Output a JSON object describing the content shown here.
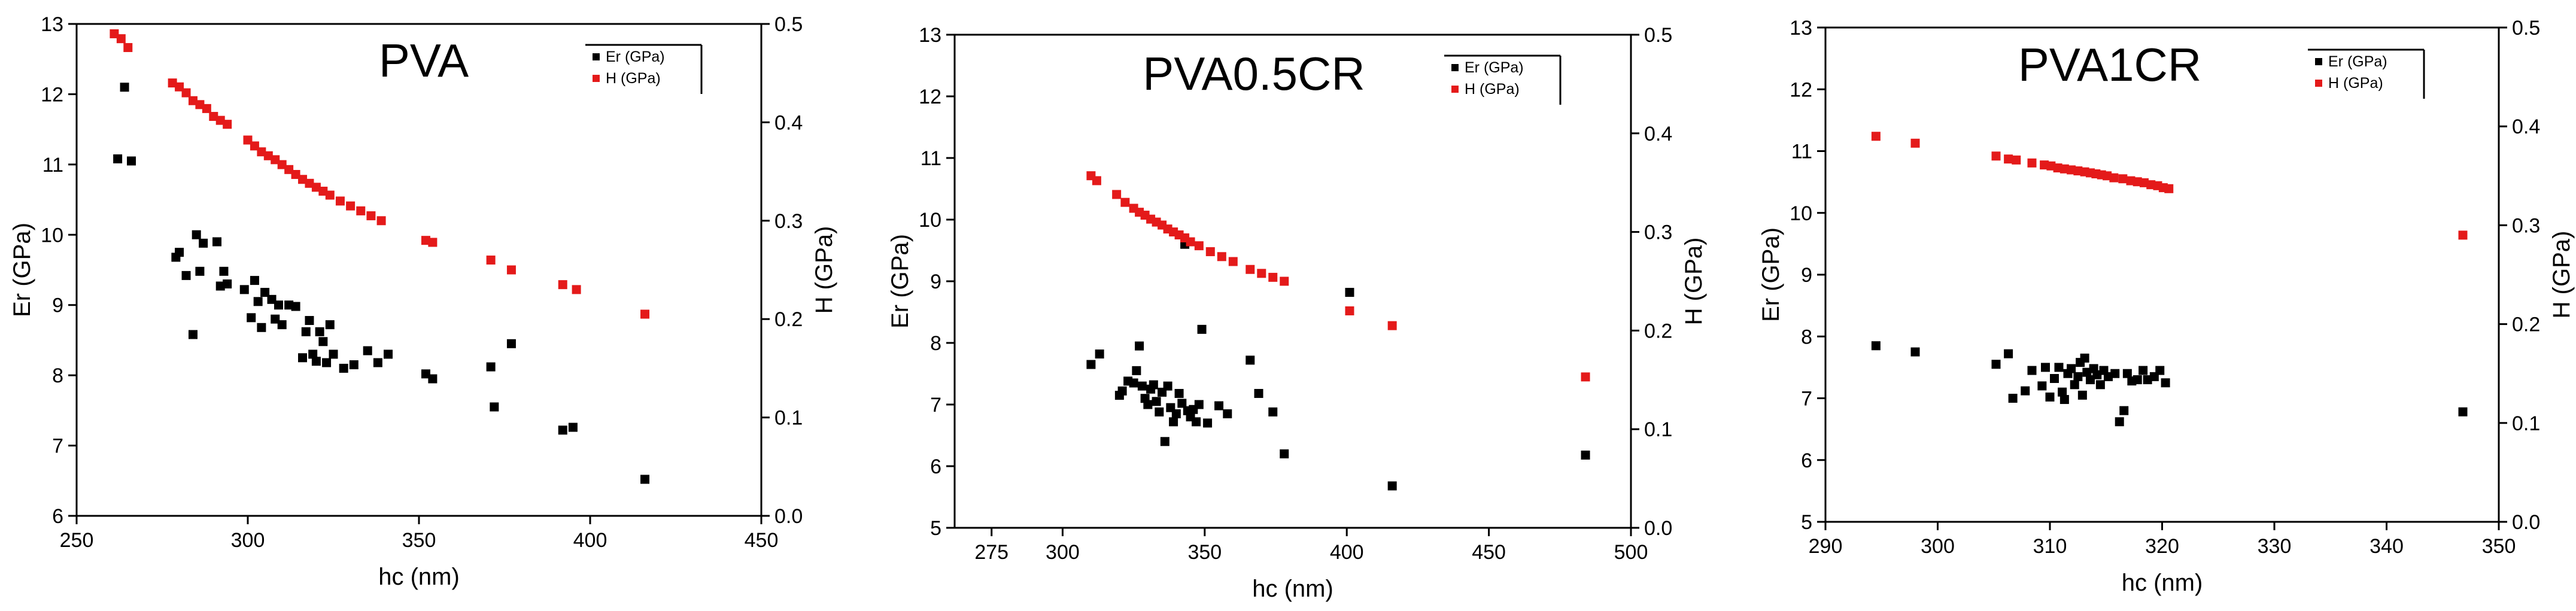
{
  "chart_data": [
    {
      "type": "scatter",
      "title": "PVA",
      "xlabel": "hc (nm)",
      "ylabel": "Er (GPa)",
      "y2label": "H (GPa)",
      "xlim": [
        250,
        450
      ],
      "ylim": [
        6,
        13
      ],
      "y2lim": [
        0.0,
        0.5
      ],
      "xticks": [
        "250",
        "300",
        "350",
        "400",
        "450"
      ],
      "yticks": [
        "6",
        "7",
        "8",
        "9",
        "10",
        "11",
        "12",
        "13"
      ],
      "y2ticks": [
        "0.0",
        "0.1",
        "0.2",
        "0.3",
        "0.4",
        "0.5"
      ],
      "legend": [
        "Er (GPa)",
        "H (GPa)"
      ],
      "legend_position": "top-right",
      "series": [
        {
          "name": "Er (GPa)",
          "axis": "left",
          "color": "#000000",
          "points": [
            [
              262,
              11.08
            ],
            [
              264,
              12.1
            ],
            [
              266,
              11.05
            ],
            [
              279,
              9.68
            ],
            [
              280,
              9.75
            ],
            [
              282,
              9.42
            ],
            [
              284,
              8.58
            ],
            [
              285,
              10.0
            ],
            [
              286,
              9.48
            ],
            [
              287,
              9.88
            ],
            [
              291,
              9.9
            ],
            [
              292,
              9.27
            ],
            [
              293,
              9.48
            ],
            [
              294,
              9.3
            ],
            [
              299,
              9.22
            ],
            [
              301,
              8.82
            ],
            [
              302,
              9.35
            ],
            [
              303,
              9.05
            ],
            [
              304,
              8.68
            ],
            [
              305,
              9.18
            ],
            [
              307,
              9.08
            ],
            [
              308,
              8.8
            ],
            [
              309,
              9.0
            ],
            [
              310,
              8.72
            ],
            [
              312,
              9.0
            ],
            [
              314,
              8.98
            ],
            [
              316,
              8.25
            ],
            [
              317,
              8.62
            ],
            [
              318,
              8.78
            ],
            [
              319,
              8.3
            ],
            [
              320,
              8.2
            ],
            [
              321,
              8.62
            ],
            [
              322,
              8.48
            ],
            [
              323,
              8.18
            ],
            [
              324,
              8.72
            ],
            [
              325,
              8.3
            ],
            [
              328,
              8.1
            ],
            [
              331,
              8.15
            ],
            [
              335,
              8.35
            ],
            [
              338,
              8.18
            ],
            [
              341,
              8.3
            ],
            [
              352,
              8.02
            ],
            [
              354,
              7.95
            ],
            [
              371,
              8.12
            ],
            [
              372,
              7.55
            ],
            [
              377,
              8.45
            ],
            [
              392,
              7.22
            ],
            [
              395,
              7.26
            ],
            [
              416,
              6.52
            ]
          ]
        },
        {
          "name": "H (GPa)",
          "axis": "right",
          "color": "#e41a1a",
          "points": [
            [
              261,
              0.49
            ],
            [
              263,
              0.485
            ],
            [
              265,
              0.476
            ],
            [
              278,
              0.44
            ],
            [
              280,
              0.436
            ],
            [
              282,
              0.43
            ],
            [
              284,
              0.422
            ],
            [
              286,
              0.418
            ],
            [
              288,
              0.414
            ],
            [
              290,
              0.406
            ],
            [
              292,
              0.402
            ],
            [
              294,
              0.398
            ],
            [
              300,
              0.382
            ],
            [
              302,
              0.376
            ],
            [
              304,
              0.37
            ],
            [
              306,
              0.366
            ],
            [
              308,
              0.362
            ],
            [
              310,
              0.357
            ],
            [
              312,
              0.352
            ],
            [
              314,
              0.347
            ],
            [
              316,
              0.342
            ],
            [
              318,
              0.338
            ],
            [
              320,
              0.334
            ],
            [
              322,
              0.33
            ],
            [
              324,
              0.326
            ],
            [
              327,
              0.32
            ],
            [
              330,
              0.315
            ],
            [
              333,
              0.31
            ],
            [
              336,
              0.305
            ],
            [
              339,
              0.3
            ],
            [
              352,
              0.28
            ],
            [
              354,
              0.278
            ],
            [
              371,
              0.26
            ],
            [
              377,
              0.25
            ],
            [
              392,
              0.235
            ],
            [
              396,
              0.23
            ],
            [
              416,
              0.205
            ]
          ]
        }
      ]
    },
    {
      "type": "scatter",
      "title": "PVA0.5CR",
      "xlabel": "hc (nm)",
      "ylabel": "Er (GPa)",
      "y2label": "H (GPa)",
      "xlim": [
        262,
        500
      ],
      "ylim": [
        5,
        13
      ],
      "y2lim": [
        0.0,
        0.5
      ],
      "xticks": [
        "275",
        "300",
        "350",
        "400",
        "450",
        "500"
      ],
      "yticks": [
        "5",
        "6",
        "7",
        "8",
        "9",
        "10",
        "11",
        "12",
        "13"
      ],
      "y2ticks": [
        "0.0",
        "0.1",
        "0.2",
        "0.3",
        "0.4",
        "0.5"
      ],
      "legend": [
        "Er (GPa)",
        "H (GPa)"
      ],
      "legend_position": "top-right",
      "series": [
        {
          "name": "Er (GPa)",
          "axis": "left",
          "color": "#000000",
          "points": [
            [
              310,
              7.65
            ],
            [
              313,
              7.82
            ],
            [
              320,
              7.15
            ],
            [
              321,
              7.22
            ],
            [
              323,
              7.38
            ],
            [
              325,
              7.35
            ],
            [
              326,
              7.55
            ],
            [
              327,
              7.95
            ],
            [
              328,
              7.3
            ],
            [
              329,
              7.1
            ],
            [
              330,
              7.0
            ],
            [
              331,
              7.25
            ],
            [
              332,
              7.32
            ],
            [
              333,
              7.05
            ],
            [
              334,
              6.88
            ],
            [
              335,
              7.2
            ],
            [
              336,
              6.4
            ],
            [
              337,
              7.3
            ],
            [
              338,
              6.95
            ],
            [
              339,
              6.72
            ],
            [
              340,
              6.85
            ],
            [
              341,
              7.18
            ],
            [
              342,
              7.02
            ],
            [
              343,
              9.6
            ],
            [
              344,
              6.9
            ],
            [
              345,
              6.8
            ],
            [
              346,
              6.92
            ],
            [
              347,
              6.72
            ],
            [
              348,
              7.0
            ],
            [
              349,
              8.22
            ],
            [
              351,
              6.7
            ],
            [
              355,
              6.98
            ],
            [
              358,
              6.85
            ],
            [
              366,
              7.72
            ],
            [
              369,
              7.18
            ],
            [
              374,
              6.88
            ],
            [
              378,
              6.2
            ],
            [
              401,
              8.82
            ],
            [
              416,
              5.68
            ],
            [
              484,
              6.18
            ]
          ]
        },
        {
          "name": "H (GPa)",
          "axis": "right",
          "color": "#e41a1a",
          "points": [
            [
              310,
              0.357
            ],
            [
              312,
              0.352
            ],
            [
              319,
              0.338
            ],
            [
              322,
              0.33
            ],
            [
              325,
              0.324
            ],
            [
              327,
              0.32
            ],
            [
              329,
              0.317
            ],
            [
              331,
              0.313
            ],
            [
              333,
              0.31
            ],
            [
              335,
              0.307
            ],
            [
              337,
              0.303
            ],
            [
              339,
              0.3
            ],
            [
              341,
              0.297
            ],
            [
              343,
              0.294
            ],
            [
              345,
              0.29
            ],
            [
              348,
              0.286
            ],
            [
              352,
              0.28
            ],
            [
              356,
              0.275
            ],
            [
              360,
              0.27
            ],
            [
              366,
              0.262
            ],
            [
              370,
              0.258
            ],
            [
              374,
              0.254
            ],
            [
              378,
              0.25
            ],
            [
              401,
              0.22
            ],
            [
              416,
              0.205
            ],
            [
              484,
              0.153
            ]
          ]
        }
      ]
    },
    {
      "type": "scatter",
      "title": "PVA1CR",
      "xlabel": "hc (nm)",
      "ylabel": "Er (GPa)",
      "y2label": "H (GPa)",
      "xlim": [
        290,
        350
      ],
      "ylim": [
        5,
        13
      ],
      "y2lim": [
        0.0,
        0.5
      ],
      "xticks": [
        "290",
        "300",
        "310",
        "320",
        "330",
        "340",
        "350"
      ],
      "yticks": [
        "5",
        "6",
        "7",
        "8",
        "9",
        "10",
        "11",
        "12",
        "13"
      ],
      "y2ticks": [
        "0.0",
        "0.1",
        "0.2",
        "0.3",
        "0.4",
        "0.5"
      ],
      "legend": [
        "Er (GPa)",
        "H (GPa)"
      ],
      "legend_position": "top-right",
      "series": [
        {
          "name": "Er (GPa)",
          "axis": "left",
          "color": "#000000",
          "points": [
            [
              294.5,
              7.85
            ],
            [
              298,
              7.75
            ],
            [
              305.2,
              7.55
            ],
            [
              306.3,
              7.72
            ],
            [
              306.7,
              7.0
            ],
            [
              307.8,
              7.12
            ],
            [
              308.4,
              7.45
            ],
            [
              309.3,
              7.2
            ],
            [
              309.6,
              7.5
            ],
            [
              310.0,
              7.02
            ],
            [
              310.4,
              7.32
            ],
            [
              310.8,
              7.5
            ],
            [
              311.1,
              7.1
            ],
            [
              311.3,
              6.98
            ],
            [
              311.6,
              7.4
            ],
            [
              311.9,
              7.48
            ],
            [
              312.2,
              7.22
            ],
            [
              312.5,
              7.35
            ],
            [
              312.7,
              7.58
            ],
            [
              312.9,
              7.05
            ],
            [
              313.1,
              7.65
            ],
            [
              313.3,
              7.42
            ],
            [
              313.6,
              7.3
            ],
            [
              313.9,
              7.48
            ],
            [
              314.2,
              7.38
            ],
            [
              314.5,
              7.22
            ],
            [
              314.8,
              7.45
            ],
            [
              315.2,
              7.35
            ],
            [
              315.8,
              7.4
            ],
            [
              316.2,
              6.62
            ],
            [
              316.6,
              6.8
            ],
            [
              316.9,
              7.4
            ],
            [
              317.3,
              7.28
            ],
            [
              317.8,
              7.3
            ],
            [
              318.3,
              7.45
            ],
            [
              318.7,
              7.3
            ],
            [
              319.3,
              7.35
            ],
            [
              319.8,
              7.45
            ],
            [
              320.3,
              7.25
            ],
            [
              346.8,
              6.78
            ]
          ]
        },
        {
          "name": "H (GPa)",
          "axis": "right",
          "color": "#e41a1a",
          "points": [
            [
              294.5,
              0.39
            ],
            [
              298,
              0.383
            ],
            [
              305.2,
              0.37
            ],
            [
              306.3,
              0.367
            ],
            [
              307.0,
              0.366
            ],
            [
              308.4,
              0.363
            ],
            [
              309.5,
              0.361
            ],
            [
              310.1,
              0.36
            ],
            [
              310.7,
              0.358
            ],
            [
              311.3,
              0.357
            ],
            [
              311.9,
              0.356
            ],
            [
              312.5,
              0.355
            ],
            [
              313.1,
              0.354
            ],
            [
              313.6,
              0.353
            ],
            [
              314.1,
              0.352
            ],
            [
              314.6,
              0.351
            ],
            [
              315.1,
              0.35
            ],
            [
              315.7,
              0.348
            ],
            [
              316.5,
              0.347
            ],
            [
              317.2,
              0.345
            ],
            [
              317.8,
              0.344
            ],
            [
              318.4,
              0.343
            ],
            [
              319.0,
              0.341
            ],
            [
              319.6,
              0.34
            ],
            [
              320.1,
              0.338
            ],
            [
              320.6,
              0.337
            ],
            [
              346.8,
              0.29
            ]
          ]
        }
      ]
    }
  ]
}
